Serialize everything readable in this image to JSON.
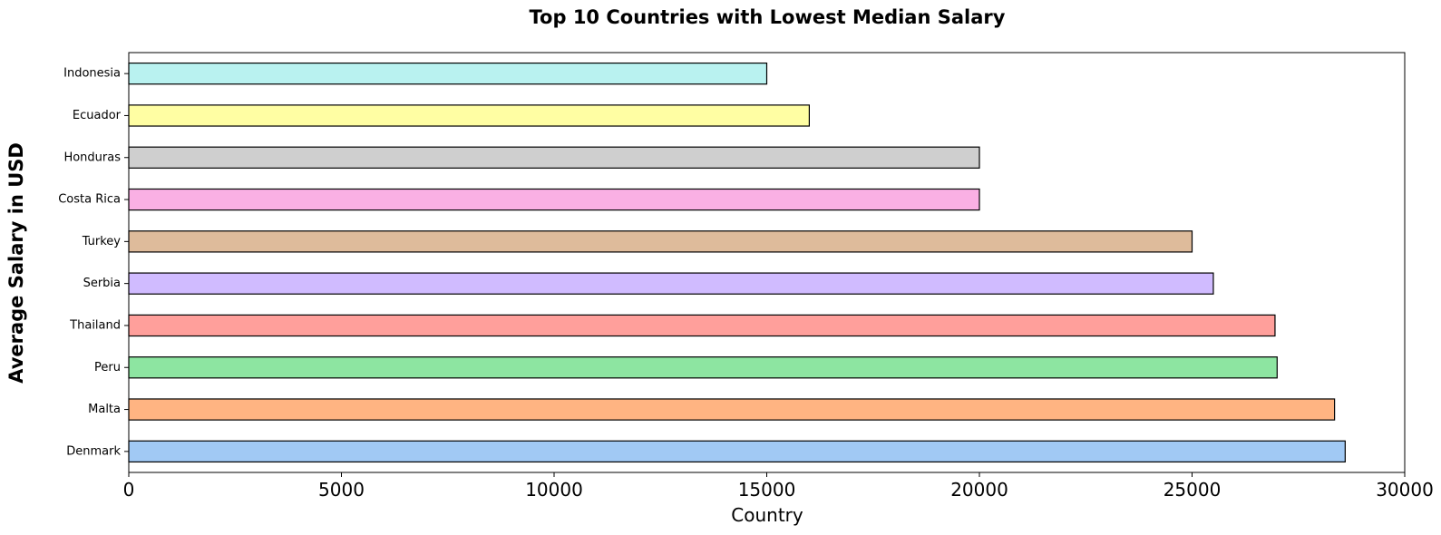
{
  "chart_data": {
    "type": "bar",
    "orientation": "horizontal",
    "title": "Top 10 Countries with Lowest Median Salary",
    "xlabel": "Country",
    "ylabel": "Average Salary in USD",
    "categories": [
      "Denmark",
      "Malta",
      "Peru",
      "Thailand",
      "Serbia",
      "Turkey",
      "Costa Rica",
      "Honduras",
      "Ecuador",
      "Indonesia"
    ],
    "values": [
      28600,
      28350,
      27000,
      26950,
      25500,
      25000,
      20000,
      20000,
      16000,
      15000
    ],
    "colors": [
      "#a1c9f4",
      "#ffb482",
      "#8de5a1",
      "#ff9f9b",
      "#d0bbff",
      "#debb9b",
      "#fab0e4",
      "#cfcfcf",
      "#fffea3",
      "#b9f2f0"
    ],
    "edge_color": "#000000",
    "xlim": [
      0,
      30000
    ],
    "x_ticks": [
      0,
      5000,
      10000,
      15000,
      20000,
      25000,
      30000
    ],
    "x_tick_labels": [
      "0",
      "5000",
      "10000",
      "15000",
      "20000",
      "25000",
      "30000"
    ],
    "grid": false,
    "legend": "none"
  }
}
